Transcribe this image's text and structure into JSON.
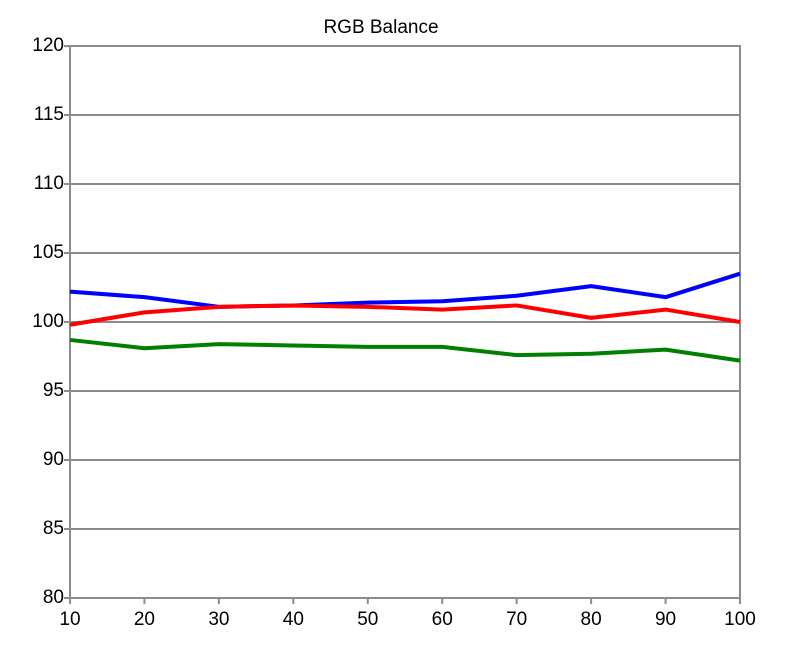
{
  "chart_data": {
    "type": "line",
    "title": "RGB Balance",
    "x": [
      10,
      20,
      30,
      40,
      50,
      60,
      70,
      80,
      90,
      100
    ],
    "xlim": [
      10,
      100
    ],
    "xticks": [
      10,
      20,
      30,
      40,
      50,
      60,
      70,
      80,
      90,
      100
    ],
    "ylim": [
      80,
      120
    ],
    "yticks": [
      80,
      85,
      90,
      95,
      100,
      105,
      110,
      115,
      120
    ],
    "grid": true,
    "series": [
      {
        "color": "#0000ff",
        "values": [
          102.2,
          101.8,
          101.1,
          101.2,
          101.4,
          101.5,
          101.9,
          102.6,
          101.8,
          103.5
        ]
      },
      {
        "color": "#ff0000",
        "values": [
          99.8,
          100.7,
          101.1,
          101.2,
          101.1,
          100.9,
          101.2,
          100.3,
          100.9,
          100.0
        ]
      },
      {
        "color": "#008000",
        "values": [
          98.7,
          98.1,
          98.4,
          98.3,
          98.2,
          98.2,
          97.6,
          97.7,
          98.0,
          97.2
        ]
      }
    ]
  }
}
